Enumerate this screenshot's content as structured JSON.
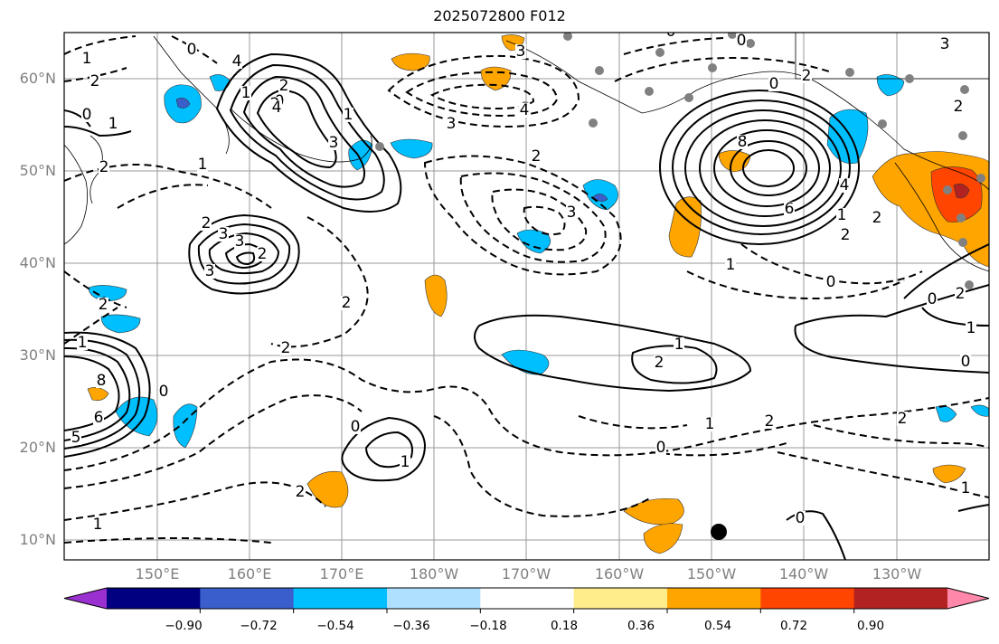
{
  "title": "2025072800 F012",
  "lat_labels": [
    "60°N",
    "50°N",
    "40°N",
    "30°N",
    "20°N",
    "10°N"
  ],
  "lon_labels": [
    "150°E",
    "160°E",
    "170°E",
    "180°W",
    "170°W",
    "160°W",
    "150°W",
    "140°W",
    "130°W"
  ],
  "colorbar": {
    "colors": [
      "#9b30d0",
      "#000080",
      "#3a5fcd",
      "#00bfff",
      "#b0e0ff",
      "#ffffff",
      "#ffec8b",
      "#ffa500",
      "#ff4500",
      "#b22222",
      "#ff88aa"
    ],
    "tick_labels": [
      "−0.90",
      "−0.72",
      "−0.54",
      "−0.36",
      "−0.18",
      "0.18",
      "0.36",
      "0.54",
      "0.72",
      "0.90"
    ]
  },
  "contour_labels": [
    "1",
    "2",
    "1",
    "2",
    "0",
    "1",
    "2",
    "3",
    "3",
    "1",
    "2",
    "0",
    "2",
    "4",
    "3",
    "2",
    "3",
    "4",
    "0",
    "1",
    "2",
    "2",
    "3",
    "4",
    "3",
    "3",
    "0",
    "1",
    "2",
    "8",
    "6",
    "4",
    "2",
    "1",
    "0",
    "1",
    "2",
    "0",
    "2",
    "0",
    "1",
    "2",
    "8",
    "5",
    "6",
    "0",
    "1",
    "2",
    "1",
    "0",
    "0",
    "1",
    "2",
    "1",
    "2",
    "1",
    "0",
    "2",
    "0",
    "0",
    "2",
    "2",
    "3",
    "4"
  ]
}
